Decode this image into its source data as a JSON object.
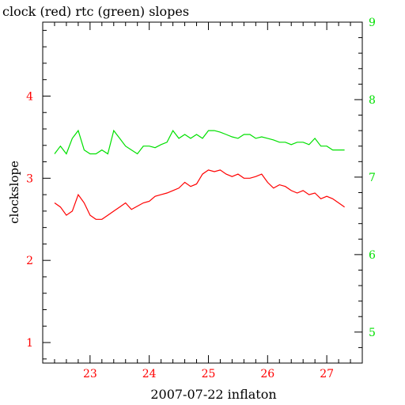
{
  "chart_data": {
    "type": "line",
    "title": "clock (red) rtc (green) slopes",
    "xlabel": "2007-07-22 inflaton",
    "ylabel": "clockslope",
    "xlim": [
      22.2,
      27.6
    ],
    "ylim_left": [
      0.75,
      4.9
    ],
    "ylim_right": [
      4.6,
      9.0
    ],
    "x_ticks": [
      "23",
      "24",
      "25",
      "26",
      "27"
    ],
    "y_left_ticks": [
      "1",
      "2",
      "3",
      "4"
    ],
    "y_right_ticks": [
      "5",
      "6",
      "7",
      "8",
      "9"
    ],
    "grid": false,
    "colors": {
      "clock": "#ff0000",
      "rtc": "#00e000",
      "axes": "#000000"
    },
    "series": [
      {
        "name": "clock",
        "axis": "left",
        "x": [
          22.4,
          22.5,
          22.6,
          22.7,
          22.8,
          22.9,
          23.0,
          23.1,
          23.2,
          23.3,
          23.4,
          23.5,
          23.6,
          23.7,
          23.8,
          23.9,
          24.0,
          24.1,
          24.2,
          24.3,
          24.4,
          24.5,
          24.6,
          24.7,
          24.8,
          24.9,
          25.0,
          25.1,
          25.2,
          25.3,
          25.4,
          25.5,
          25.6,
          25.7,
          25.8,
          25.9,
          26.0,
          26.1,
          26.2,
          26.3,
          26.4,
          26.5,
          26.6,
          26.7,
          26.8,
          26.9,
          27.0,
          27.1,
          27.2,
          27.3
        ],
        "y": [
          2.7,
          2.65,
          2.55,
          2.6,
          2.8,
          2.7,
          2.55,
          2.5,
          2.5,
          2.55,
          2.6,
          2.65,
          2.7,
          2.62,
          2.66,
          2.7,
          2.72,
          2.78,
          2.8,
          2.82,
          2.85,
          2.88,
          2.95,
          2.9,
          2.93,
          3.05,
          3.1,
          3.08,
          3.1,
          3.05,
          3.02,
          3.05,
          3.0,
          3.0,
          3.02,
          3.05,
          2.95,
          2.88,
          2.92,
          2.9,
          2.85,
          2.82,
          2.85,
          2.8,
          2.82,
          2.75,
          2.78,
          2.75,
          2.7,
          2.65
        ]
      },
      {
        "name": "rtc",
        "axis": "right",
        "x": [
          22.4,
          22.5,
          22.6,
          22.7,
          22.8,
          22.9,
          23.0,
          23.1,
          23.2,
          23.3,
          23.4,
          23.5,
          23.6,
          23.7,
          23.8,
          23.9,
          24.0,
          24.1,
          24.2,
          24.3,
          24.4,
          24.5,
          24.6,
          24.7,
          24.8,
          24.9,
          25.0,
          25.1,
          25.2,
          25.3,
          25.4,
          25.5,
          25.6,
          25.7,
          25.8,
          25.9,
          26.0,
          26.1,
          26.2,
          26.3,
          26.4,
          26.5,
          26.6,
          26.7,
          26.8,
          26.9,
          27.0,
          27.1,
          27.2,
          27.3
        ],
        "y": [
          7.3,
          7.4,
          7.3,
          7.5,
          7.6,
          7.35,
          7.3,
          7.3,
          7.35,
          7.3,
          7.6,
          7.5,
          7.4,
          7.35,
          7.3,
          7.4,
          7.4,
          7.38,
          7.42,
          7.45,
          7.6,
          7.5,
          7.55,
          7.5,
          7.55,
          7.5,
          7.6,
          7.6,
          7.58,
          7.55,
          7.52,
          7.5,
          7.55,
          7.55,
          7.5,
          7.52,
          7.5,
          7.48,
          7.45,
          7.45,
          7.42,
          7.45,
          7.45,
          7.42,
          7.5,
          7.4,
          7.4,
          7.35,
          7.35,
          7.35
        ]
      }
    ]
  }
}
